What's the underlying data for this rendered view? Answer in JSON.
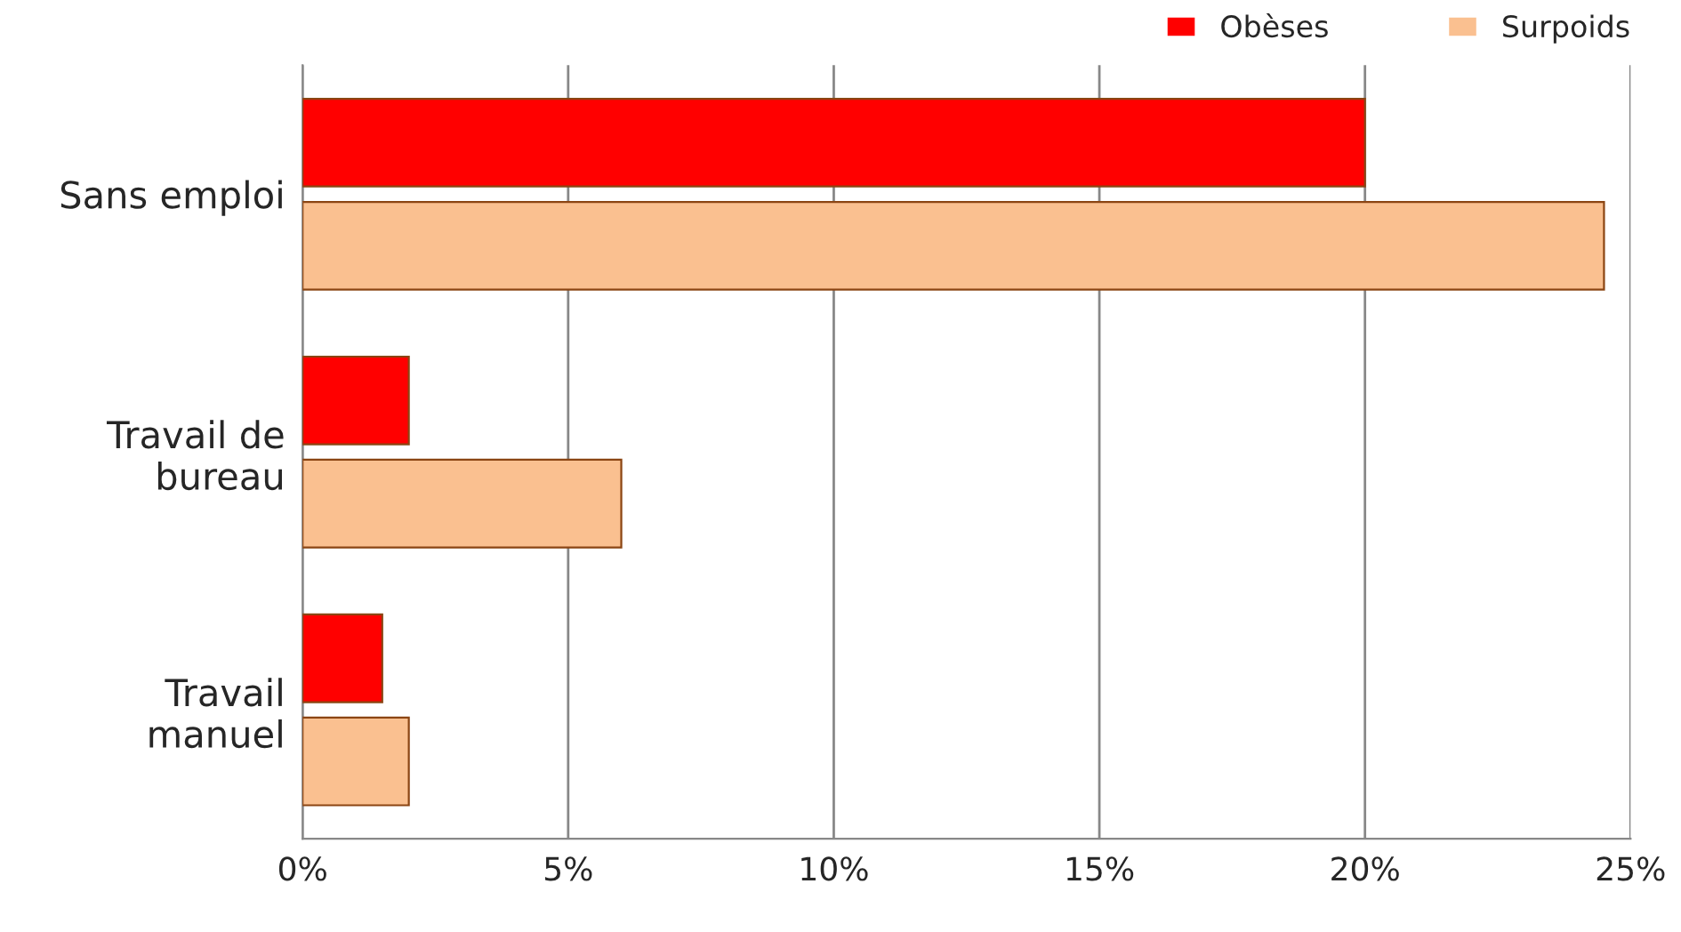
{
  "chart_data": {
    "type": "bar",
    "orientation": "horizontal",
    "categories": [
      "Sans emploi",
      "Travail de\nbureau",
      "Travail\nmanuel"
    ],
    "series": [
      {
        "name": "Obèses",
        "color": "#ff0000",
        "values": [
          20,
          2,
          1.5
        ]
      },
      {
        "name": "Surpoids",
        "color": "#fac090",
        "values": [
          24.5,
          6,
          2
        ]
      }
    ],
    "xlim": [
      0,
      25
    ],
    "xticks": [
      {
        "value": 0,
        "label": "0%"
      },
      {
        "value": 5,
        "label": "5%"
      },
      {
        "value": 10,
        "label": "10%"
      },
      {
        "value": 15,
        "label": "15%"
      },
      {
        "value": 20,
        "label": "20%"
      },
      {
        "value": 25,
        "label": "25%"
      }
    ],
    "grid": "x",
    "legend": "top right"
  }
}
